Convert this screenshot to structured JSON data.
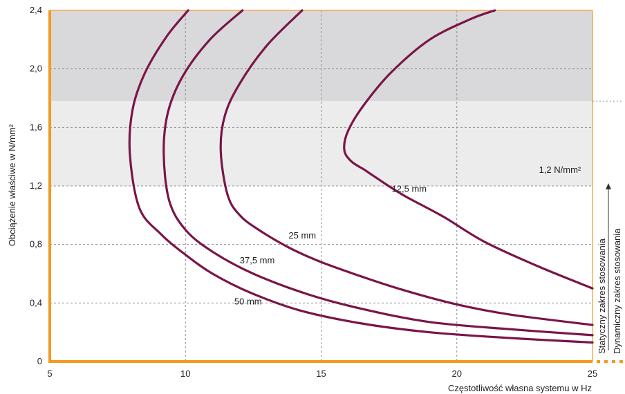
{
  "chart_data": {
    "type": "line",
    "title": "",
    "xlabel": "Częstotliwość własna systemu w Hz",
    "ylabel": "Obciążenie właściwe w N/mm²",
    "xlim": [
      5,
      25
    ],
    "ylim": [
      0,
      2.4
    ],
    "x_ticks": [
      "5",
      "10",
      "15",
      "20",
      "25"
    ],
    "y_ticks": [
      "0",
      "0,4",
      "0,8",
      "1,2",
      "1,6",
      "2,0",
      "2,4"
    ],
    "grid": true,
    "bands": [
      {
        "from": 1.2,
        "to": 1.78,
        "color": "#ececed"
      },
      {
        "from": 1.78,
        "to": 2.4,
        "color": "#d9d9db"
      }
    ],
    "band_label": "1,2 N/mm²",
    "range_labels": {
      "static": "Statyczny zakres stosowania",
      "dynamic": "Dynamiczny zakres stosowania"
    },
    "series": [
      {
        "name": "12,5 mm",
        "x": [
          25,
          23,
          21,
          19.5,
          18,
          17,
          16.6,
          16.1,
          15.85,
          16.0,
          16.6,
          17.6,
          19.0,
          20.5,
          21.4
        ],
        "y": [
          0.5,
          0.65,
          0.82,
          0.99,
          1.14,
          1.26,
          1.31,
          1.37,
          1.45,
          1.58,
          1.76,
          1.98,
          2.2,
          2.34,
          2.4
        ]
      },
      {
        "name": "25 mm",
        "x": [
          25,
          22,
          20,
          18,
          16.5,
          15,
          13.8,
          12.7,
          12.0,
          11.55,
          11.3,
          11.45,
          12.0,
          13.0,
          14.3
        ],
        "y": [
          0.25,
          0.32,
          0.39,
          0.49,
          0.58,
          0.68,
          0.78,
          0.9,
          1.0,
          1.14,
          1.44,
          1.68,
          1.9,
          2.16,
          2.4
        ]
      },
      {
        "name": "37,5 mm",
        "x": [
          25,
          22,
          19,
          16.5,
          14.5,
          12.5,
          11,
          10,
          9.4,
          9.2,
          9.35,
          9.9,
          10.9,
          12.1
        ],
        "y": [
          0.18,
          0.22,
          0.27,
          0.36,
          0.46,
          0.6,
          0.75,
          0.9,
          1.1,
          1.42,
          1.7,
          1.95,
          2.2,
          2.4
        ]
      },
      {
        "name": "50 mm",
        "x": [
          25,
          22,
          19,
          16.5,
          14.2,
          12.4,
          11,
          10,
          9.1,
          8.3,
          7.95,
          8.05,
          8.5,
          9.3,
          10.1
        ],
        "y": [
          0.13,
          0.16,
          0.2,
          0.26,
          0.35,
          0.47,
          0.6,
          0.73,
          0.87,
          1.05,
          1.42,
          1.72,
          1.97,
          2.22,
          2.4
        ]
      }
    ],
    "label_positions": [
      {
        "series": "12,5 mm",
        "x": 17.6,
        "y": 1.16
      },
      {
        "series": "25 mm",
        "x": 13.8,
        "y": 0.84
      },
      {
        "series": "37,5 mm",
        "x": 12.0,
        "y": 0.67
      },
      {
        "series": "50 mm",
        "x": 11.8,
        "y": 0.39
      }
    ],
    "colors": {
      "curve": "#7a1548",
      "axis": "#f39a1f",
      "grid": "#8f8f8f",
      "band_light": "#ececed",
      "band_dark": "#d9d9db"
    }
  }
}
